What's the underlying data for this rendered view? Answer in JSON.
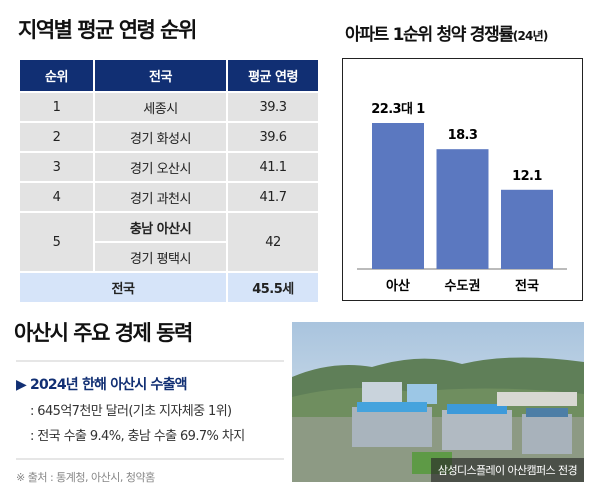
{
  "age_ranking": {
    "title": "지역별 평균 연령 순위",
    "headers": [
      "순위",
      "전국",
      "평균 연령"
    ],
    "rows": [
      {
        "rank": "1",
        "region": "세종시",
        "age": "39.3"
      },
      {
        "rank": "2",
        "region": "경기 화성시",
        "age": "39.6"
      },
      {
        "rank": "3",
        "region": "경기 오산시",
        "age": "41.1"
      },
      {
        "rank": "4",
        "region": "경기 과천시",
        "age": "41.7"
      }
    ],
    "tied_row": {
      "rank": "5",
      "regions": [
        "충남 아산시",
        "경기 평택시"
      ],
      "age": "42"
    },
    "total": {
      "label": "전국",
      "age": "45.5세"
    },
    "header_color": "#112f73",
    "highlight_color": "#d6e4f9"
  },
  "chart_data": {
    "type": "bar",
    "title": "아파트 1순위 청약 경쟁률",
    "title_suffix": "(24년)",
    "categories": [
      "아산",
      "수도권",
      "전국"
    ],
    "values": [
      22.3,
      18.3,
      12.1
    ],
    "data_labels": [
      "22.3대 1",
      "18.3",
      "12.1"
    ],
    "bar_color": "#5b78c0",
    "grid": false
  },
  "economy": {
    "title": "아산시 주요 경제 동력",
    "subtitle": "▶ 2024년 한해 아산시 수출액",
    "lines": [
      ": 645억7천만 달러(기초 지자체중 1위)",
      ": 전국 수출 9.4%, 충남 수출 69.7% 차지"
    ],
    "source": "※ 출처 : 통계청, 아산시, 청약홈",
    "photo_caption": "삼성디스플레이 아산캠퍼스 전경"
  }
}
